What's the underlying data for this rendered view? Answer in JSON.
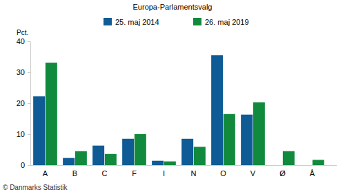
{
  "chart_data": {
    "type": "bar",
    "title": "Europa-Parlamentsvalg",
    "y_label": "Pct.",
    "annotations": [
      "© Danmarks Statistik"
    ],
    "categories": [
      "A",
      "B",
      "C",
      "F",
      "I",
      "N",
      "O",
      "V",
      "Ø",
      "Å"
    ],
    "series": [
      {
        "name": "25. maj 2014",
        "color": "#0f5b95",
        "values": [
          22.2,
          2.3,
          6.3,
          8.5,
          1.4,
          8.5,
          35.5,
          16.3,
          null,
          null
        ]
      },
      {
        "name": "26. maj 2019",
        "color": "#118a3d",
        "values": [
          33.1,
          4.5,
          3.6,
          10.0,
          1.2,
          5.9,
          16.5,
          20.3,
          4.5,
          1.7
        ]
      }
    ],
    "ylim": [
      0,
      40
    ],
    "yticks": [
      0,
      10,
      20,
      30,
      40
    ],
    "grid": false,
    "legend": "top"
  }
}
